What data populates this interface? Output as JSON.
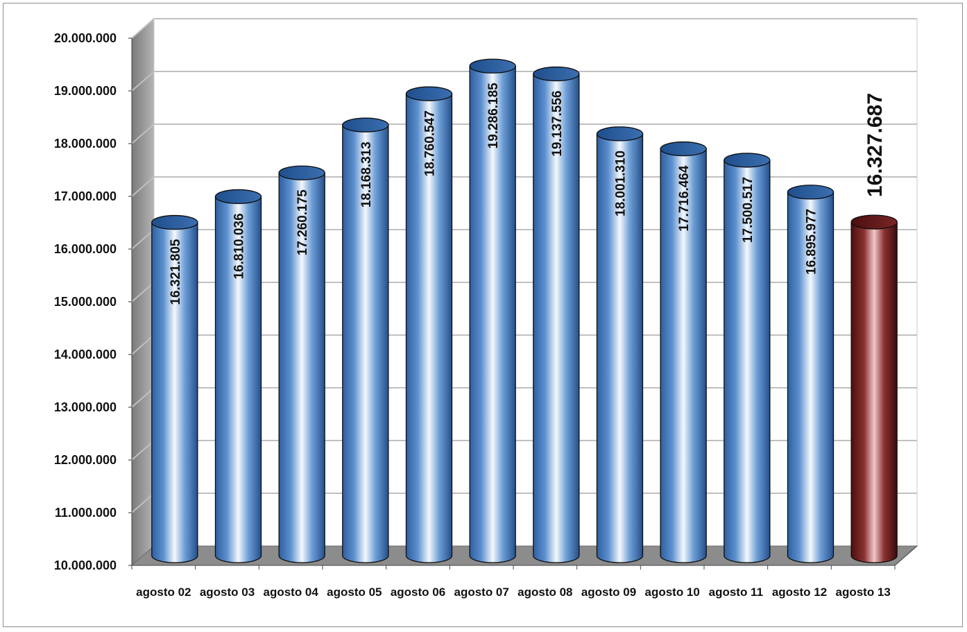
{
  "chart_data": {
    "type": "bar",
    "style": "3d-cylinder",
    "categories": [
      "agosto 02",
      "agosto 03",
      "agosto 04",
      "agosto 05",
      "agosto 06",
      "agosto 07",
      "agosto 08",
      "agosto 09",
      "agosto 10",
      "agosto 11",
      "agosto 12",
      "agosto 13"
    ],
    "values": [
      16321805,
      16810036,
      17260175,
      18168313,
      18760547,
      19286185,
      19137556,
      18001310,
      17716464,
      17500517,
      16895977,
      16327687
    ],
    "value_labels": [
      "16.321.805",
      "16.810.036",
      "17.260.175",
      "18.168.313",
      "18.760.547",
      "19.286.185",
      "19.137.556",
      "18.001.310",
      "17.716.464",
      "17.500.517",
      "16.895.977",
      "16.327.687"
    ],
    "y_ticks": [
      "10.000.000",
      "11.000.000",
      "12.000.000",
      "13.000.000",
      "14.000.000",
      "15.000.000",
      "16.000.000",
      "17.000.000",
      "18.000.000",
      "19.000.000",
      "20.000.000"
    ],
    "ylim": [
      10000000,
      20000000
    ],
    "highlight_index": 11,
    "colors": {
      "bar": "#4a7ebf",
      "highlight": "#6b1f1f",
      "floor": "#8c8c8c",
      "grid": "#c0c0c0"
    },
    "grid": true,
    "legend": "none"
  }
}
